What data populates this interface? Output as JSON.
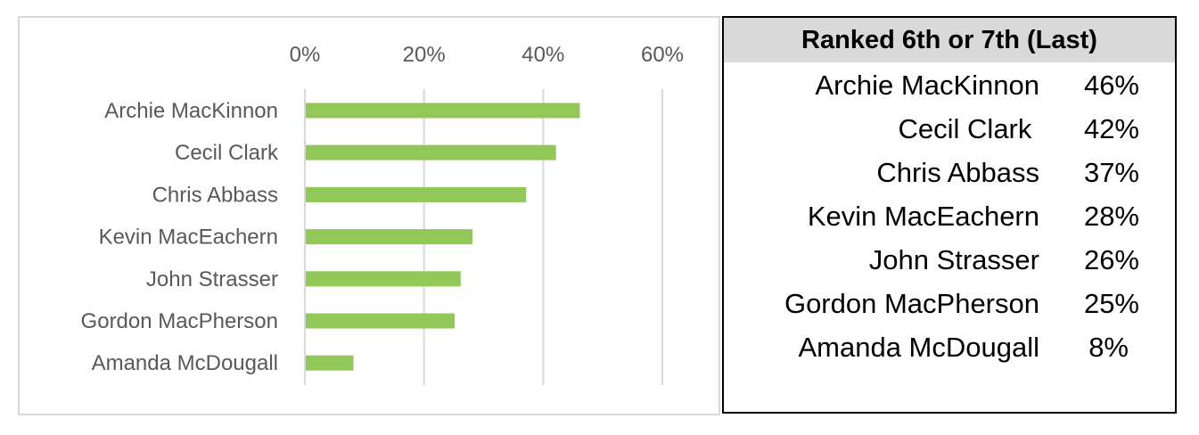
{
  "chart_data": {
    "type": "bar",
    "orientation": "horizontal",
    "categories": [
      "Archie MacKinnon",
      "Cecil Clark",
      "Chris Abbass",
      "Kevin MacEachern",
      "John Strasser",
      "Gordon MacPherson",
      "Amanda McDougall"
    ],
    "values": [
      46,
      42,
      37,
      28,
      26,
      25,
      8
    ],
    "xlim": [
      0,
      60
    ],
    "xticks": [
      "0%",
      "20%",
      "40%",
      "60%"
    ],
    "xtick_values": [
      0,
      20,
      40,
      60
    ],
    "x_axis_position": "top",
    "grid": "vertical",
    "legend": "none",
    "bar_color": "#92c857",
    "grid_color": "#d9d9d9"
  },
  "table": {
    "title": "Ranked 6th or 7th (Last)",
    "rows": [
      {
        "name": "Archie MacKinnon",
        "pct": "46%"
      },
      {
        "name": "Cecil Clark ",
        "pct": "42%"
      },
      {
        "name": "Chris Abbass",
        "pct": "37%"
      },
      {
        "name": "Kevin MacEachern",
        "pct": "28%"
      },
      {
        "name": "John Strasser",
        "pct": "26%"
      },
      {
        "name": "Gordon MacPherson",
        "pct": "25%"
      },
      {
        "name": "Amanda McDougall",
        "pct": "8%"
      }
    ]
  }
}
